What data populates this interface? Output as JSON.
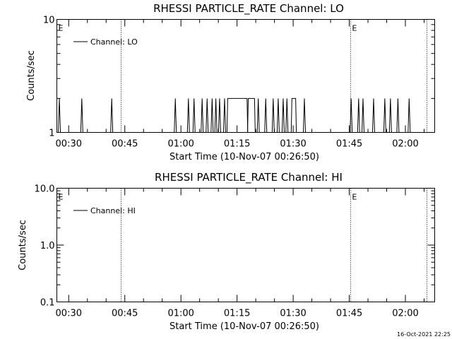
{
  "timestamp": "16-Oct-2021 22:25",
  "chart_data": [
    {
      "type": "line",
      "title": "RHESSI PARTICLE_RATE Channel: LO",
      "xlabel": "Start Time (10-Nov-07 00:26:50)",
      "ylabel": "Counts/sec",
      "yscale": "log",
      "ylim": [
        1,
        10
      ],
      "xlim": [
        "00:26:50",
        "02:07:50"
      ],
      "xticks": [
        "00:30",
        "00:45",
        "01:00",
        "01:15",
        "01:30",
        "01:45",
        "02:00"
      ],
      "yticks": [
        "1",
        "10"
      ],
      "legend": {
        "entries": [
          "Channel: LO"
        ],
        "position": "top-left"
      },
      "markers": [
        {
          "label": "E",
          "time": "00:26:50"
        },
        {
          "label": "E",
          "time": "01:45:20"
        }
      ],
      "vlines": [
        "00:44:00",
        "01:45:20",
        "02:05:40"
      ],
      "series": [
        {
          "baseline": 1,
          "peak_value": 2,
          "spikes": [
            "00:27:30",
            "00:33:30",
            "00:41:30",
            "00:58:30",
            "01:02:00",
            "01:03:30",
            "01:05:40",
            "01:07:00",
            "01:08:20",
            "01:09:20",
            "01:10:20",
            "01:11:40",
            "01:20:40",
            "01:22:40",
            "01:24:40",
            "01:26:00",
            "01:27:20",
            "01:28:20",
            "01:33:00",
            "01:45:30",
            "01:47:30",
            "01:48:40",
            "01:51:30",
            "01:54:30",
            "01:56:00",
            "01:58:00",
            "02:01:00"
          ],
          "plateaus": [
            {
              "start": "01:12:30",
              "end": "01:17:40",
              "value": 2
            },
            {
              "start": "01:18:00",
              "end": "01:19:40",
              "value": 2
            },
            {
              "start": "01:29:40",
              "end": "01:30:40",
              "value": 2
            }
          ]
        }
      ]
    },
    {
      "type": "line",
      "title": "RHESSI PARTICLE_RATE Channel: HI",
      "xlabel": "Start Time (10-Nov-07 00:26:50)",
      "ylabel": "Counts/sec",
      "yscale": "log",
      "ylim": [
        0.1,
        10
      ],
      "xlim": [
        "00:26:50",
        "02:07:50"
      ],
      "xticks": [
        "00:30",
        "00:45",
        "01:00",
        "01:15",
        "01:30",
        "01:45",
        "02:00"
      ],
      "yticks": [
        "0.1",
        "1.0",
        "10.0"
      ],
      "legend": {
        "entries": [
          "Channel: HI"
        ],
        "position": "top-left"
      },
      "markers": [
        {
          "label": "E",
          "time": "00:26:50"
        },
        {
          "label": "E",
          "time": "01:45:20"
        }
      ],
      "vlines": [
        "00:44:00",
        "01:45:20",
        "02:05:40"
      ],
      "series": []
    }
  ]
}
